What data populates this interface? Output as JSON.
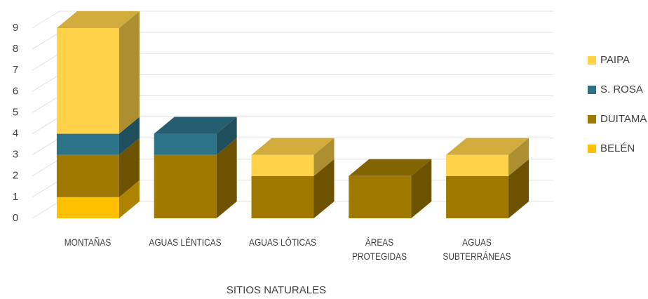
{
  "chart_data": {
    "type": "bar3d_stacked",
    "x_label": "SITIOS NATURALES",
    "categories": [
      "MONTAÑAS",
      "AGUAS LÉNTICAS",
      "AGUAS LÓTICAS",
      "ÁREAS\nPROTEGIDAS",
      "AGUAS\nSUBTERRÁNEAS"
    ],
    "series": [
      {
        "name": "BELÉN",
        "color": "#ffc000",
        "values": [
          1,
          0,
          0,
          0,
          0
        ]
      },
      {
        "name": "DUITAMA",
        "color": "#a07a00",
        "values": [
          2,
          3,
          2,
          2,
          2
        ]
      },
      {
        "name": "S. ROSA",
        "color": "#2d7388",
        "values": [
          1,
          1,
          0,
          0,
          0
        ]
      },
      {
        "name": "PAIPA",
        "color": "#ffd24a",
        "values": [
          5,
          0,
          1,
          0,
          1
        ]
      }
    ],
    "ylim": [
      0,
      9
    ],
    "yticks": [
      0,
      1,
      2,
      3,
      4,
      5,
      6,
      7,
      8,
      9
    ],
    "grid": true,
    "legend": "right"
  }
}
